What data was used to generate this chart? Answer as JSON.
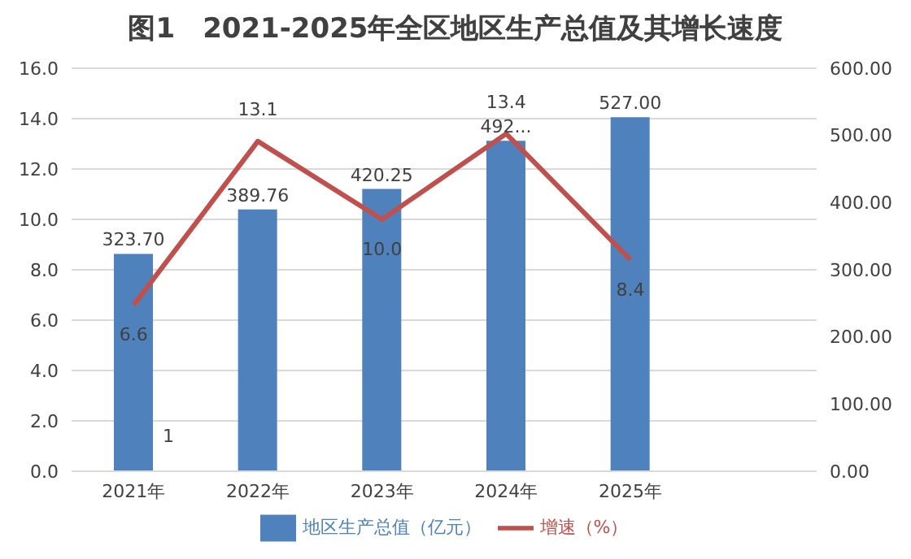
{
  "chart_data": {
    "type": "bar",
    "title": "图1　2021-2025年全区地区生产总值及其增长速度",
    "categories": [
      "2021年",
      "2022年",
      "2023年",
      "2024年",
      "2025年",
      null
    ],
    "series": [
      {
        "name": "地区生产总值（亿元）",
        "axis": "y2",
        "color": "#4f81bd",
        "values": [
          323.7,
          389.76,
          420.25,
          492,
          527.0,
          null
        ],
        "value_labels": [
          "323.70",
          "389.76",
          "420.25",
          "492...",
          "527.00",
          null
        ]
      },
      {
        "name": "增速（%）",
        "type": "line",
        "color": "#c0504d",
        "values": [
          6.6,
          13.1,
          10.0,
          13.4,
          8.4,
          null
        ],
        "value_labels": [
          "6.6",
          "13.1",
          "10.0",
          "13.4",
          "8.4",
          null
        ]
      }
    ],
    "ylim": [
      0,
      16
    ],
    "yticks": [
      {
        "value": 0,
        "label": "0.0"
      },
      {
        "value": 2,
        "label": "2.0"
      },
      {
        "value": 4,
        "label": "4.0"
      },
      {
        "value": 6,
        "label": "6.0"
      },
      {
        "value": 8,
        "label": "8.0"
      },
      {
        "value": 10,
        "label": "10.0"
      },
      {
        "value": 12,
        "label": "12.0"
      },
      {
        "value": 14,
        "label": "14.0"
      },
      {
        "value": 16,
        "label": "16.0"
      }
    ],
    "y2lim": [
      0,
      600
    ],
    "y2ticks": [
      {
        "value": 0,
        "label": "0.00"
      },
      {
        "value": 100,
        "label": "100.00"
      },
      {
        "value": 200,
        "label": "200.00"
      },
      {
        "value": 300,
        "label": "300.00"
      },
      {
        "value": 400,
        "label": "400.00"
      },
      {
        "value": 500,
        "label": "500.00"
      },
      {
        "value": 600,
        "label": "600.00"
      }
    ],
    "annotations": [
      "1"
    ],
    "grid": "y",
    "legend": "bottom",
    "marker": "none"
  }
}
